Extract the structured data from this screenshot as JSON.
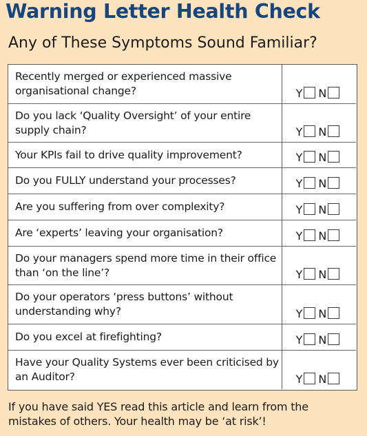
{
  "title": "Warning Letter Health Check",
  "subtitle": "Any of These Symptoms Sound Familiar?",
  "yes_label": "Y",
  "no_label": "N",
  "questions": [
    "Recently merged or experienced massive organisational change?",
    "Do you lack ‘Quality Oversight’ of your entire supply chain?",
    "Your KPIs fail to drive quality improvement?",
    "Do you FULLY understand your processes?",
    "Are you suffering from over complexity?",
    "Are ‘experts’ leaving your organisation?",
    "Do your managers spend more time in their office than ‘on the line’?",
    "Do your operators ‘press buttons’ without understanding why?",
    "Do you excel at firefighting?",
    "Have your Quality Systems ever been criticised by an Auditor?"
  ],
  "footer": "If you have said YES read this article and learn from the mistakes of others. Your health may be ‘at risk’!"
}
